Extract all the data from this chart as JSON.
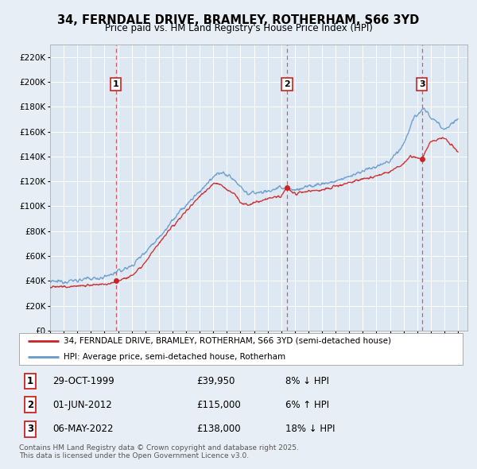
{
  "title": "34, FERNDALE DRIVE, BRAMLEY, ROTHERHAM, S66 3YD",
  "subtitle": "Price paid vs. HM Land Registry's House Price Index (HPI)",
  "bg_color": "#e8eef5",
  "plot_bg_color": "#dde8f3",
  "ylim": [
    0,
    230000
  ],
  "yticks": [
    0,
    20000,
    40000,
    60000,
    80000,
    100000,
    120000,
    140000,
    160000,
    180000,
    200000,
    220000
  ],
  "xlim_start": 1995,
  "xlim_end": 2025.7,
  "purchases": [
    {
      "date": "29-OCT-1999",
      "price": 39950,
      "label": "1",
      "hpi_diff": "8% ↓ HPI",
      "year": 1999.83
    },
    {
      "date": "01-JUN-2012",
      "price": 115000,
      "label": "2",
      "hpi_diff": "6% ↑ HPI",
      "year": 2012.42
    },
    {
      "date": "06-MAY-2022",
      "price": 138000,
      "label": "3",
      "hpi_diff": "18% ↓ HPI",
      "year": 2022.35
    }
  ],
  "legend_entries": [
    "34, FERNDALE DRIVE, BRAMLEY, ROTHERHAM, S66 3YD (semi-detached house)",
    "HPI: Average price, semi-detached house, Rotherham"
  ],
  "footer_line1": "Contains HM Land Registry data © Crown copyright and database right 2025.",
  "footer_line2": "This data is licensed under the Open Government Licence v3.0.",
  "red_color": "#cc2222",
  "blue_color": "#6699cc",
  "hpi_key_years": [
    1995,
    1997,
    1999,
    2001,
    2003,
    2004.5,
    2006,
    2007.5,
    2008.5,
    2009.5,
    2011,
    2012,
    2013,
    2014,
    2015,
    2016,
    2017,
    2018,
    2019,
    2020,
    2021,
    2021.8,
    2022.5,
    2023,
    2024,
    2025
  ],
  "hpi_key_vals": [
    39000,
    40500,
    43000,
    52000,
    75000,
    95000,
    112000,
    128000,
    122000,
    110000,
    112000,
    115000,
    113000,
    116000,
    118000,
    120000,
    124000,
    128000,
    132000,
    136000,
    150000,
    172000,
    178000,
    172000,
    162000,
    170000
  ],
  "prop_key_years": [
    1995,
    1997,
    1999,
    1999.84,
    2001,
    2002,
    2003,
    2004.5,
    2006,
    2007,
    2007.5,
    2008,
    2008.5,
    2009,
    2009.5,
    2011,
    2012.0,
    2012.42,
    2013,
    2014,
    2015,
    2016,
    2017,
    2018,
    2019,
    2020,
    2021,
    2021.5,
    2022.35,
    2022.8,
    2023,
    2024,
    2025
  ],
  "prop_key_vals": [
    35000,
    36000,
    37000,
    39950,
    44000,
    55000,
    70000,
    90000,
    108000,
    118000,
    118000,
    113000,
    111000,
    103000,
    101000,
    106000,
    108000,
    115000,
    110000,
    112000,
    113000,
    116000,
    119000,
    122000,
    124000,
    128000,
    134000,
    140000,
    138000,
    148000,
    152000,
    155000,
    144000
  ]
}
